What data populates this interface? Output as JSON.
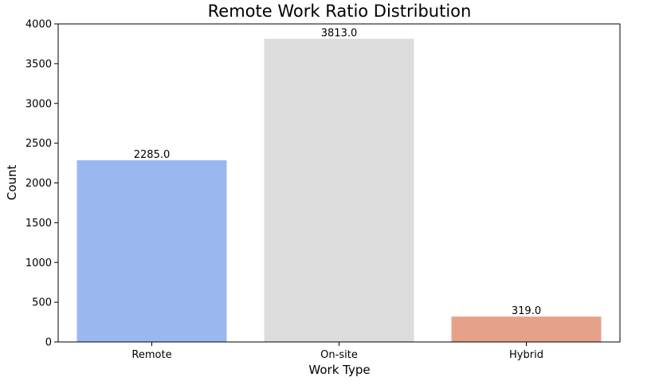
{
  "chart_data": {
    "type": "bar",
    "title": "Remote Work Ratio Distribution",
    "xlabel": "Work Type",
    "ylabel": "Count",
    "categories": [
      "Remote",
      "On-site",
      "Hybrid"
    ],
    "values": [
      2285,
      3813,
      319
    ],
    "data_labels": [
      "2285.0",
      "3813.0",
      "319.0"
    ],
    "colors": [
      "#9bb7f0",
      "#dcdcdc",
      "#e6a18a"
    ],
    "ylim": [
      0,
      4000
    ],
    "yticks": [
      0,
      500,
      1000,
      1500,
      2000,
      2500,
      3000,
      3500,
      4000
    ],
    "grid": false,
    "legend": "none"
  }
}
